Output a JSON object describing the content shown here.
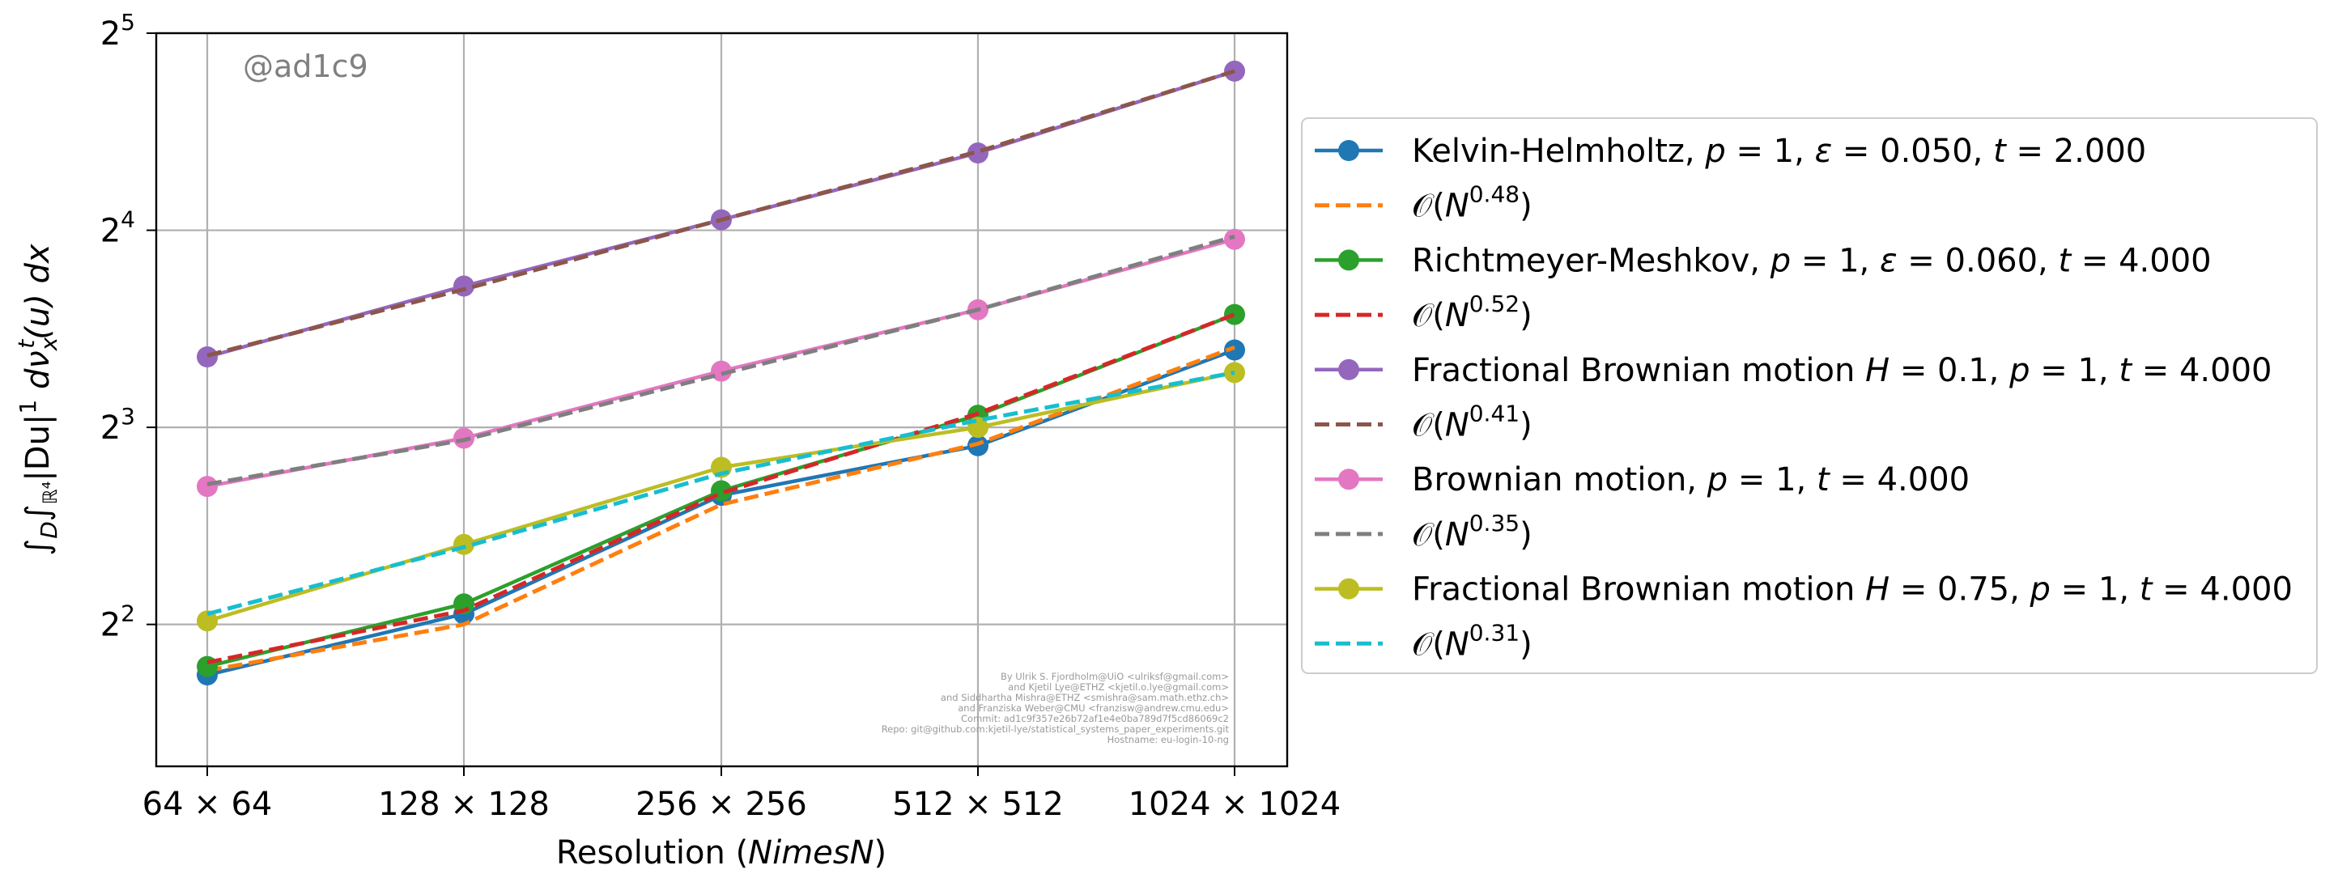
{
  "chart_data": {
    "type": "line",
    "xscale": "log2",
    "yscale": "log2",
    "x": [
      64,
      128,
      256,
      512,
      1024
    ],
    "xtick_labels": [
      "64 × 64",
      "128 × 128",
      "256 × 256",
      "512 × 512",
      "1024 × 1024"
    ],
    "xlabel_parts": [
      "Resolution (",
      "NimesN",
      ")"
    ],
    "ylabel_parts": [
      "∫",
      "D",
      "∫",
      "ℝ⁴",
      "|Du|",
      "1",
      " dν",
      "x",
      "t",
      "(u) dx"
    ],
    "yticks": [
      {
        "base": "2",
        "exp": "2"
      },
      {
        "base": "2",
        "exp": "3"
      },
      {
        "base": "2",
        "exp": "4"
      },
      {
        "base": "2",
        "exp": "5"
      }
    ],
    "ylim_log2": [
      1.28,
      5.0
    ],
    "grid": true,
    "legend_placement": "outside-right",
    "series": [
      {
        "name_parts": [
          "Kelvin-Helmholtz, ",
          "p",
          " = 1, ",
          "ε",
          " = 0.050, ",
          "t",
          " = 2.000"
        ],
        "color": "#1f77b4",
        "style": "solid",
        "marker": true,
        "values": [
          3.35,
          4.15,
          6.3,
          7.5,
          10.5
        ]
      },
      {
        "name_parts": [
          "𝒪(",
          "N",
          "0.48",
          ")"
        ],
        "color": "#ff7f0e",
        "style": "dashed",
        "marker": false,
        "values": [
          3.4,
          4.0,
          6.1,
          7.55,
          10.6
        ]
      },
      {
        "name_parts": [
          "Richtmeyer-Meshkov, ",
          "p",
          " = 1, ",
          "ε",
          " = 0.060, ",
          "t",
          " = 4.000"
        ],
        "color": "#2ca02c",
        "style": "solid",
        "marker": true,
        "values": [
          3.45,
          4.3,
          6.4,
          8.35,
          11.9
        ]
      },
      {
        "name_parts": [
          "𝒪(",
          "N",
          "0.52",
          ")"
        ],
        "color": "#d62728",
        "style": "dashed",
        "marker": false,
        "values": [
          3.5,
          4.2,
          6.35,
          8.4,
          11.9
        ]
      },
      {
        "name_parts": [
          "Fractional Brownian motion ",
          "H",
          " = 0.1, ",
          "p",
          " = 1, ",
          "t",
          " = 4.000"
        ],
        "color": "#9467bd",
        "style": "solid",
        "marker": true,
        "values": [
          10.25,
          13.15,
          16.6,
          21.0,
          28.0
        ]
      },
      {
        "name_parts": [
          "𝒪(",
          "N",
          "0.41",
          ")"
        ],
        "color": "#8c564b",
        "style": "dashed",
        "marker": false,
        "values": [
          10.3,
          13.0,
          16.6,
          21.1,
          28.0
        ]
      },
      {
        "name_parts": [
          "Brownian motion, ",
          "p",
          " = 1, ",
          "t",
          " = 4.000"
        ],
        "color": "#e377c2",
        "style": "solid",
        "marker": true,
        "values": [
          6.5,
          7.7,
          9.75,
          12.1,
          15.5
        ]
      },
      {
        "name_parts": [
          "𝒪(",
          "N",
          "0.35",
          ")"
        ],
        "color": "#7f7f7f",
        "style": "dashed",
        "marker": false,
        "values": [
          6.55,
          7.65,
          9.65,
          12.1,
          15.65
        ]
      },
      {
        "name_parts": [
          "Fractional Brownian motion ",
          "H",
          " = 0.75, ",
          "p",
          " = 1, ",
          "t",
          " = 4.000"
        ],
        "color": "#bcbd22",
        "style": "solid",
        "marker": true,
        "values": [
          4.05,
          5.3,
          6.95,
          8.0,
          9.7
        ]
      },
      {
        "name_parts": [
          "𝒪(",
          "N",
          "0.31",
          ")"
        ],
        "color": "#17becf",
        "style": "dashed",
        "marker": false,
        "values": [
          4.15,
          5.25,
          6.8,
          8.2,
          9.7
        ]
      }
    ],
    "watermark": "@ad1c9",
    "credits": [
      "By Ulrik S. Fjordholm@UiO <ulriksf@gmail.com>",
      "and Kjetil Lye@ETHZ <kjetil.o.lye@gmail.com>",
      "and Siddhartha Mishra@ETHZ <smishra@sam.math.ethz.ch>",
      "and Franziska Weber@CMU <franzisw@andrew.cmu.edu>",
      "Commit: ad1c9f357e26b72af1e4e0ba789d7f5cd86069c2",
      "Repo: git@github.com:kjetil-lye/statistical_systems_paper_experiments.git",
      "Hostname: eu-login-10-ng"
    ]
  }
}
